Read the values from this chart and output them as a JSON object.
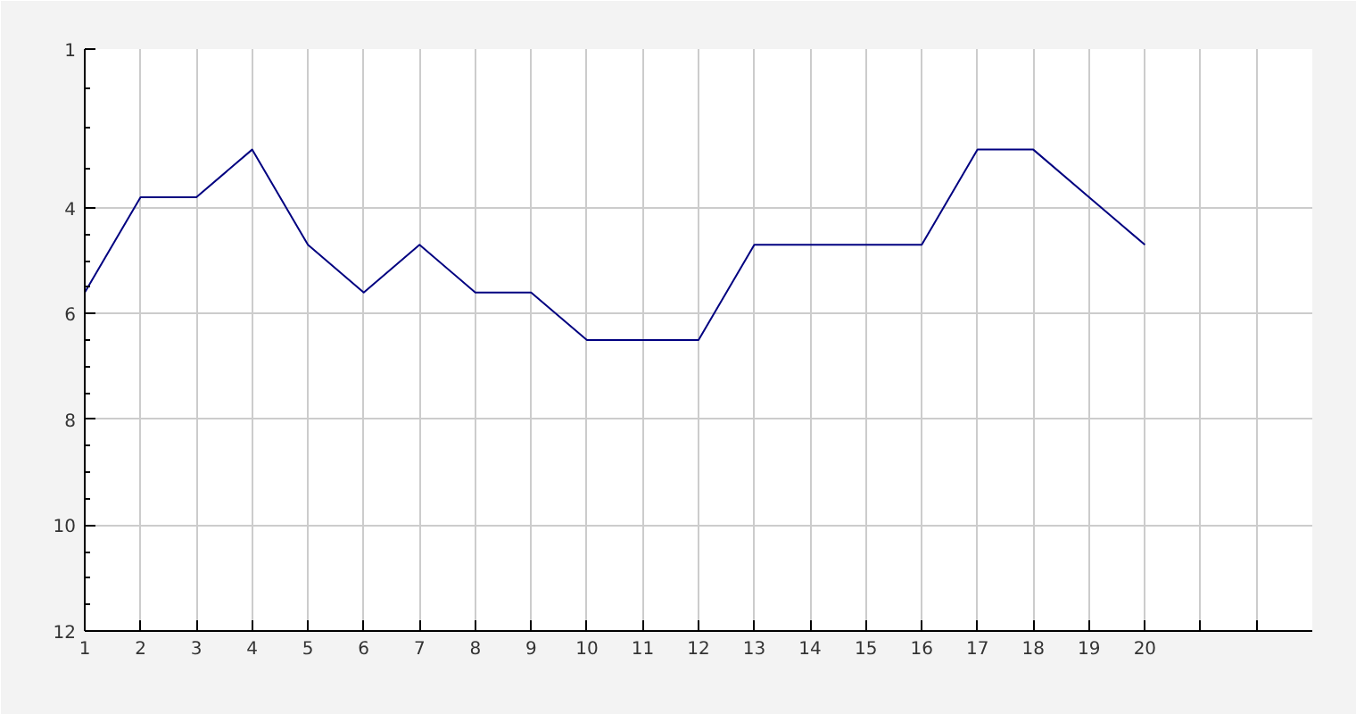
{
  "chart_data": {
    "type": "line",
    "x": [
      1,
      2,
      3,
      4,
      5,
      6,
      7,
      8,
      9,
      10,
      11,
      12,
      13,
      14,
      15,
      16,
      17,
      18,
      19,
      20
    ],
    "series": [
      {
        "color": "#000080",
        "values": [
          5.6,
          3.8,
          3.8,
          2.9,
          4.7,
          5.6,
          4.7,
          5.6,
          5.6,
          6.5,
          6.5,
          6.5,
          4.7,
          4.7,
          4.7,
          4.7,
          2.9,
          2.9,
          3.8,
          4.7
        ]
      }
    ],
    "xlim": [
      1,
      23
    ],
    "xticks": [
      1,
      2,
      3,
      4,
      5,
      6,
      7,
      8,
      9,
      10,
      11,
      12,
      13,
      14,
      15,
      16,
      17,
      18,
      19,
      20,
      {
        "value": 21,
        "label": null
      },
      {
        "value": 22,
        "label": null
      }
    ],
    "ylim": [
      12,
      1
    ],
    "yticks": [
      1,
      4,
      6,
      8,
      10,
      12
    ],
    "grid": true,
    "marker": "none",
    "line_style": "solid"
  }
}
